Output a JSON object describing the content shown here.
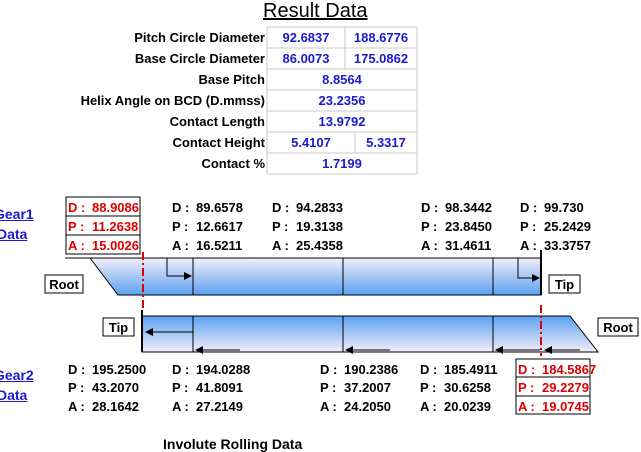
{
  "title": "Result Data",
  "results": [
    {
      "label": "Pitch Circle Diameter",
      "values": [
        "92.6837",
        "188.6776"
      ]
    },
    {
      "label": "Base Circle Diameter",
      "values": [
        "86.0073",
        "175.0862"
      ]
    },
    {
      "label": "Base Pitch",
      "values": [
        "8.8564"
      ]
    },
    {
      "label": "Helix Angle on BCD (D.mmss)",
      "values": [
        "23.2356"
      ]
    },
    {
      "label": "Contact Length",
      "values": [
        "13.9792"
      ]
    },
    {
      "label": "Contact Height",
      "values": [
        "5.4107",
        "5.3317"
      ]
    },
    {
      "label": "Contact %",
      "values": [
        "1.7199"
      ]
    }
  ],
  "row_labels": [
    "D :",
    "P :",
    "A :"
  ],
  "gear1": {
    "title": "Gear1",
    "subtitle": "Data",
    "points": [
      [
        "88.9086",
        "11.2638",
        "15.0026"
      ],
      [
        "89.6578",
        "12.6617",
        "16.5211"
      ],
      [
        "94.2833",
        "19.3138",
        "25.4358"
      ],
      [
        "98.3442",
        "23.8450",
        "31.4611"
      ],
      [
        "99.730",
        "25.2429",
        "33.3757"
      ]
    ]
  },
  "gear2": {
    "title": "Gear2",
    "subtitle": "Data",
    "points": [
      [
        "195.2500",
        "43.2070",
        "28.1642"
      ],
      [
        "194.0288",
        "41.8091",
        "27.2149"
      ],
      [
        "190.2386",
        "37.2007",
        "24.2050"
      ],
      [
        "185.4911",
        "30.6258",
        "20.0239"
      ],
      [
        "184.5867",
        "29.2279",
        "19.0745"
      ]
    ]
  },
  "diagram": {
    "root": "Root",
    "tip": "Tip"
  },
  "footer": "Involute Rolling Data"
}
